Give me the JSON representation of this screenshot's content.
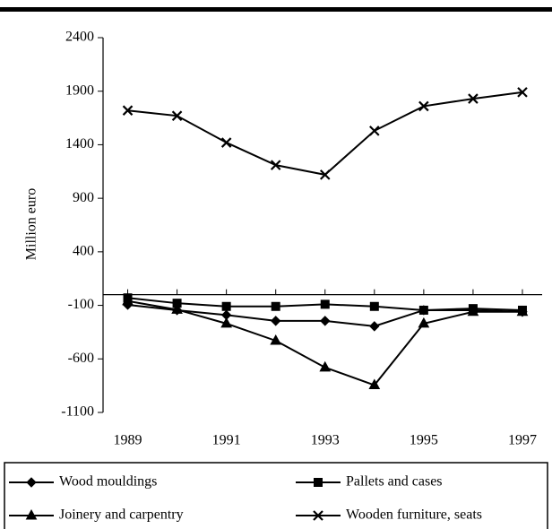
{
  "chart_data": {
    "type": "line",
    "y_label": "Million euro",
    "x": [
      1989,
      1990,
      1991,
      1992,
      1993,
      1994,
      1995,
      1996,
      1997
    ],
    "xlim": [
      1988.5,
      1997.4
    ],
    "xticks": [
      1989,
      1991,
      1993,
      1995,
      1997
    ],
    "ylim": [
      -1100,
      2400
    ],
    "yticks": [
      2400,
      1900,
      1400,
      900,
      400,
      -100,
      -600,
      -1100
    ],
    "series": [
      {
        "name": "Wood mouldings",
        "color": "#000000",
        "marker": "diamond",
        "values": [
          -95,
          -145,
          -190,
          -245,
          -245,
          -295,
          -145,
          -145,
          -160
        ]
      },
      {
        "name": "Pallets and cases",
        "color": "#000000",
        "marker": "square",
        "values": [
          -30,
          -80,
          -110,
          -110,
          -90,
          -110,
          -145,
          -130,
          -145
        ]
      },
      {
        "name": "Joinery and carpentry",
        "color": "#000000",
        "marker": "triangle",
        "values": [
          -60,
          -140,
          -270,
          -430,
          -680,
          -845,
          -270,
          -160,
          -160
        ]
      },
      {
        "name": "Wooden furniture, seats",
        "color": "#000000",
        "marker": "cross",
        "values": [
          1720,
          1670,
          1420,
          1210,
          1120,
          1530,
          1760,
          1830,
          1890
        ]
      }
    ]
  }
}
